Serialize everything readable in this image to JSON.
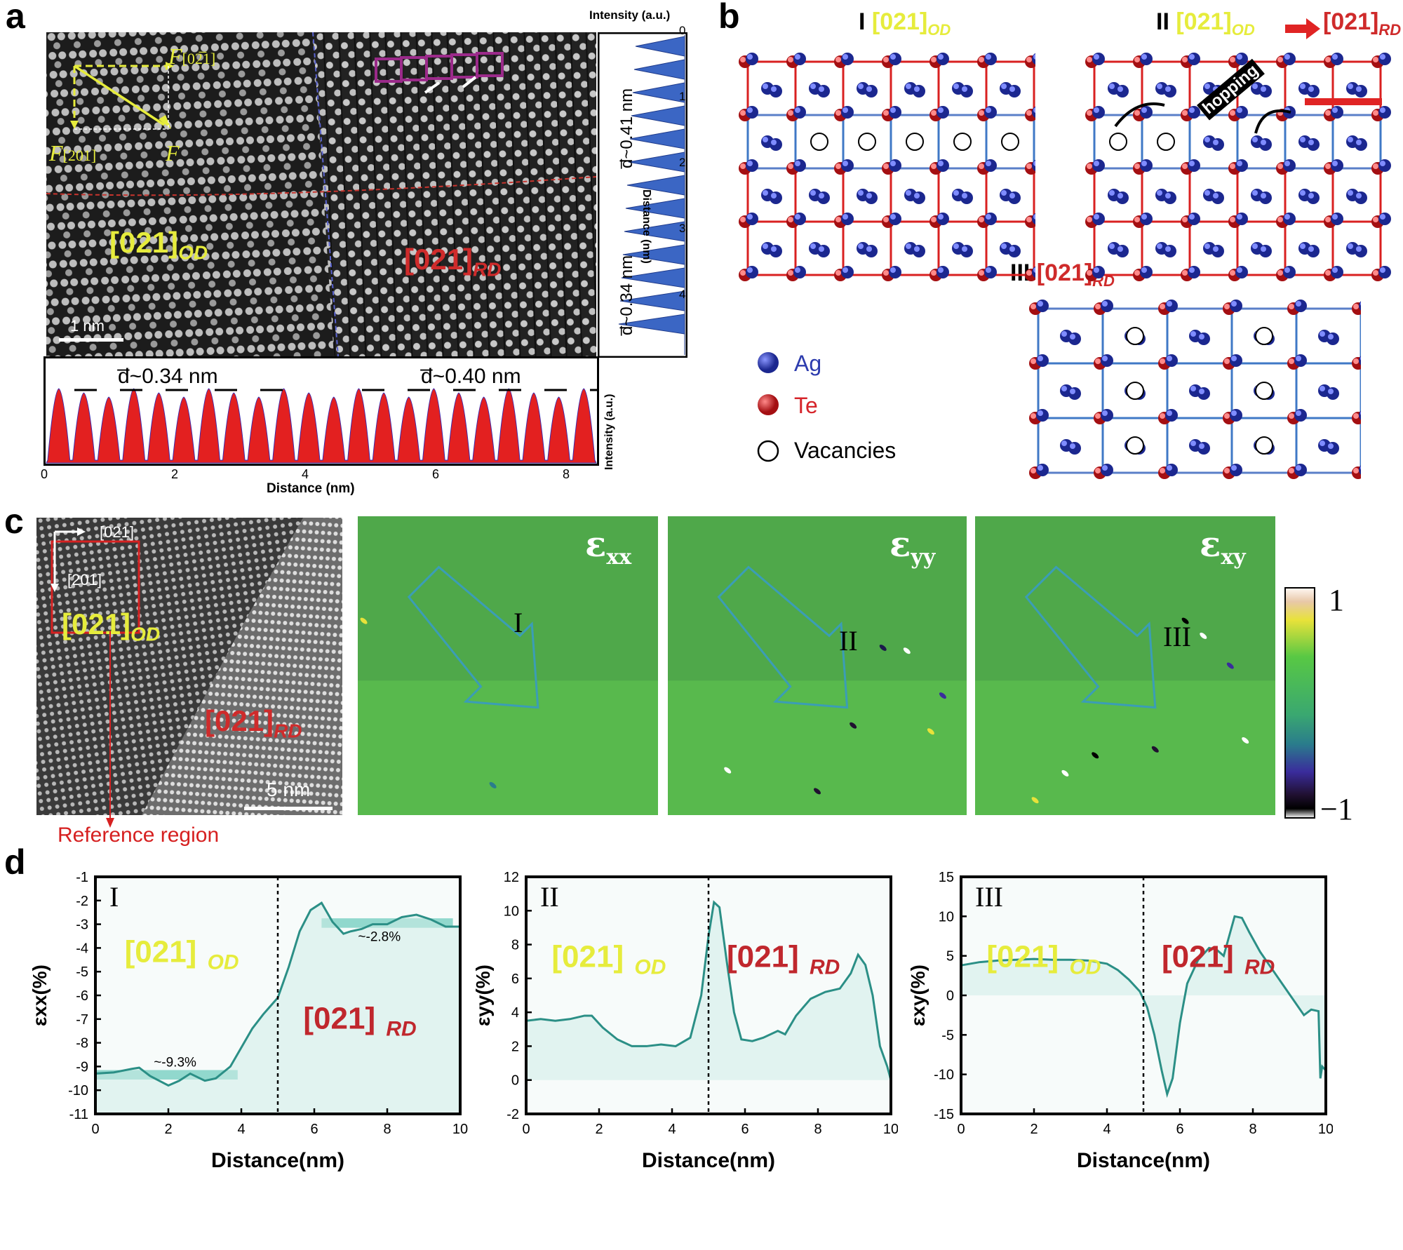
{
  "colors": {
    "od": "#e6ec3c",
    "rd": "#cf2b2b",
    "teal": "#2b8f86",
    "ag": "#2d3cae",
    "te": "#d6242a",
    "lattice_red": "#d92020",
    "lattice_blue": "#3f78c6"
  },
  "panel_a": {
    "letter": "a",
    "force_x": "F",
    "force_x_sub": "[02̅1]",
    "force_y": "F",
    "force_y_sub": "[201]",
    "force_total": "F",
    "od_label": "[021]",
    "od_sub": "OD",
    "rd_label": "[021]",
    "rd_sub": "RD",
    "scale": "1 nm",
    "side_profile": {
      "title": "Intensity (a.u.)",
      "axis_label": "Distance (nm)",
      "ticks": [
        "0",
        "1",
        "2",
        "3",
        "4"
      ],
      "d_top": "d̅~0.41 nm",
      "d_bottom": "d̅~0.34 nm"
    },
    "bottom_profile": {
      "xlabel": "Distance (nm)",
      "ylabel": "Intensity (a.u.)",
      "ticks": [
        "0",
        "2",
        "4",
        "6",
        "8"
      ],
      "d_left": "d̅~0.34 nm",
      "d_right": "d̅~0.40 nm"
    }
  },
  "panel_b": {
    "letter": "b",
    "I_num": "I",
    "I_label": "[021]",
    "I_sub": "OD",
    "II_num": "II",
    "II_label_a": "[021]",
    "II_sub_a": "OD",
    "II_label_b": "[021]",
    "II_sub_b": "RD",
    "hopping": "hopping",
    "III_num": "III",
    "III_label": "[021]",
    "III_sub": "RD",
    "legend": [
      {
        "label": "Ag"
      },
      {
        "label": "Te"
      },
      {
        "label": "Vacancies"
      }
    ]
  },
  "panel_c": {
    "letter": "c",
    "dir_1": "[021]",
    "dir_2": "[201]",
    "od_label": "[021]",
    "od_sub": "OD",
    "rd_label": "[021]",
    "rd_sub": "RD",
    "scale": "5 nm",
    "reference": "Reference region",
    "maps": [
      {
        "symbol": "ɛ",
        "sub": "xx",
        "roman": "I"
      },
      {
        "symbol": "ɛ",
        "sub": "yy",
        "roman": "II"
      },
      {
        "symbol": "ɛ",
        "sub": "xy",
        "roman": "III"
      }
    ],
    "colorbar": {
      "max": "1",
      "min": "−1"
    }
  },
  "panel_d": {
    "letter": "d"
  },
  "chart_data": [
    {
      "type": "line",
      "roman": "I",
      "xlabel": "Distance(nm)",
      "ylabel": "εxx(%)",
      "xlim": [
        0,
        10
      ],
      "ylim": [
        -11,
        -1
      ],
      "xticks": [
        0,
        2,
        4,
        6,
        8,
        10
      ],
      "yticks": [
        -11,
        -10,
        -9,
        -8,
        -7,
        -6,
        -5,
        -4,
        -3,
        -2,
        -1
      ],
      "fill_baseline": -11,
      "divider_x": 5,
      "x": [
        0,
        0.5,
        1,
        1.2,
        1.5,
        2,
        2.3,
        2.6,
        3,
        3.3,
        3.7,
        4,
        4.3,
        4.6,
        5,
        5.3,
        5.6,
        5.9,
        6.2,
        6.5,
        6.8,
        7,
        7.3,
        7.6,
        8,
        8.4,
        8.8,
        9.2,
        9.6,
        10
      ],
      "y": [
        -9.3,
        -9.25,
        -9.1,
        -9.05,
        -9.4,
        -9.8,
        -9.6,
        -9.3,
        -9.6,
        -9.5,
        -9.0,
        -8.2,
        -7.4,
        -6.8,
        -6.1,
        -4.8,
        -3.3,
        -2.4,
        -2.1,
        -2.9,
        -3.4,
        -3.3,
        -3.2,
        -3.0,
        -3.0,
        -2.7,
        -2.6,
        -2.8,
        -3.1,
        -3.1
      ],
      "bands": [
        {
          "x0": 0,
          "x1": 3.9,
          "y0": -9.55,
          "y1": -9.15
        },
        {
          "x0": 6.2,
          "x1": 9.8,
          "y0": -3.15,
          "y1": -2.75
        }
      ],
      "annotations": [
        {
          "text": "~-9.3%",
          "x": 1.6,
          "y": -9.0
        },
        {
          "text": "~-2.8%",
          "x": 7.2,
          "y": -3.7
        }
      ],
      "od": {
        "text": "[021]",
        "sub": "OD",
        "x": 0.8,
        "y": -4.6
      },
      "rd": {
        "text": "[021]",
        "sub": "RD",
        "x": 5.7,
        "y": -7.4
      }
    },
    {
      "type": "line",
      "roman": "II",
      "xlabel": "Distance(nm)",
      "ylabel": "εyy(%)",
      "xlim": [
        0,
        10
      ],
      "ylim": [
        -2,
        12
      ],
      "xticks": [
        0,
        2,
        4,
        6,
        8,
        10
      ],
      "yticks": [
        -2,
        0,
        2,
        4,
        6,
        8,
        10,
        12
      ],
      "fill_baseline": 0,
      "divider_x": 5,
      "x": [
        0,
        0.4,
        0.8,
        1.2,
        1.6,
        1.8,
        2.1,
        2.5,
        2.9,
        3.3,
        3.7,
        4.1,
        4.5,
        4.8,
        5.0,
        5.15,
        5.3,
        5.5,
        5.7,
        5.9,
        6.2,
        6.5,
        6.9,
        7.1,
        7.4,
        7.8,
        8.2,
        8.6,
        8.9,
        9.1,
        9.3,
        9.5,
        9.7,
        9.9,
        10
      ],
      "y": [
        3.5,
        3.6,
        3.5,
        3.6,
        3.8,
        3.8,
        3.1,
        2.4,
        2.0,
        2.0,
        2.1,
        2.0,
        2.5,
        5.0,
        8.5,
        10.5,
        10.2,
        7.0,
        4.0,
        2.4,
        2.3,
        2.5,
        2.9,
        2.7,
        3.8,
        4.8,
        5.2,
        5.4,
        6.3,
        7.4,
        6.8,
        5.0,
        2.0,
        0.8,
        0
      ]
    },
    {
      "type": "line",
      "roman": "III",
      "xlabel": "Distance(nm)",
      "ylabel": "εxy(%)",
      "xlim": [
        0,
        10
      ],
      "ylim": [
        -15,
        15
      ],
      "xticks": [
        0,
        2,
        4,
        6,
        8,
        10
      ],
      "yticks": [
        -15,
        -10,
        -5,
        0,
        5,
        10,
        15
      ],
      "fill_baseline": 0,
      "divider_x": 5,
      "x": [
        0,
        0.5,
        1,
        1.5,
        2,
        2.5,
        3,
        3.5,
        4,
        4.3,
        4.6,
        4.9,
        5.1,
        5.3,
        5.5,
        5.65,
        5.8,
        6.0,
        6.2,
        6.5,
        6.8,
        7.0,
        7.2,
        7.35,
        7.5,
        7.7,
        7.9,
        8.2,
        8.5,
        8.8,
        9.1,
        9.4,
        9.6,
        9.8,
        9.85,
        9.9,
        10
      ],
      "y": [
        3.8,
        4.2,
        4.4,
        4.5,
        4.6,
        4.5,
        4.5,
        4.4,
        4.0,
        3.2,
        2.0,
        0.5,
        -1.5,
        -5.0,
        -9.5,
        -12.5,
        -10.5,
        -3.5,
        1.5,
        4.5,
        6.0,
        5.8,
        5.0,
        7.5,
        10.0,
        9.8,
        8.0,
        5.5,
        3.5,
        1.5,
        -0.5,
        -2.5,
        -1.8,
        -2.0,
        -10.5,
        -9.0,
        -9.5
      ]
    }
  ]
}
